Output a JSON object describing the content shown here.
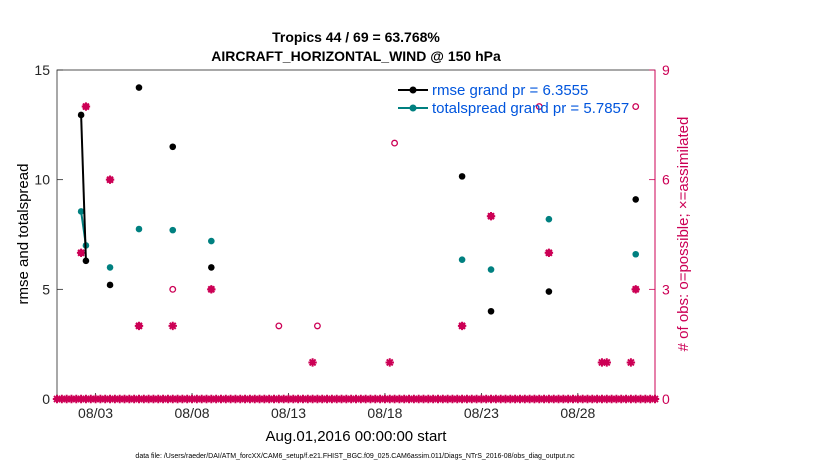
{
  "chart_data": {
    "type": "scatter",
    "title_line1": "Tropics 44 / 69 = 63.768%",
    "title_line2": "AIRCRAFT_HORIZONTAL_WIND @ 150 hPa",
    "xlabel": "Aug.01,2016 00:00:00 start",
    "ylabel_left": "rmse and totalspread",
    "ylabel_right": "# of obs: o=possible; ×=assimilated",
    "xlim": [
      0.5,
      31.5
    ],
    "ylim_left": [
      0,
      15
    ],
    "ylim_right": [
      0,
      9
    ],
    "x_ticks": [
      {
        "x": 2.5,
        "label": "08/03"
      },
      {
        "x": 7.5,
        "label": "08/08"
      },
      {
        "x": 12.5,
        "label": "08/13"
      },
      {
        "x": 17.5,
        "label": "08/18"
      },
      {
        "x": 22.5,
        "label": "08/23"
      },
      {
        "x": 27.5,
        "label": "08/28"
      }
    ],
    "left_ticks": [
      "0",
      "5",
      "10",
      "15"
    ],
    "right_ticks": [
      "0",
      "3",
      "6",
      "9"
    ],
    "legend_position": "top-right",
    "colors": {
      "rmse": "#000000",
      "spread": "#008080",
      "obs": "#cc0055"
    },
    "series": [
      {
        "name": "rmse",
        "legend": "rmse grand pr = 6.3555",
        "points": [
          [
            1.75,
            12.95
          ],
          [
            2.0,
            6.3
          ],
          [
            3.25,
            5.2
          ],
          [
            4.75,
            14.2
          ],
          [
            6.5,
            11.5
          ],
          [
            8.5,
            6.0
          ],
          [
            21.5,
            10.15
          ],
          [
            23.0,
            4.0
          ],
          [
            26.0,
            4.9
          ],
          [
            30.5,
            9.1
          ]
        ],
        "line": [
          [
            1.75,
            12.95
          ],
          [
            2.0,
            6.3
          ]
        ]
      },
      {
        "name": "totalspread",
        "legend": "totalspread grand pr = 5.7857",
        "points": [
          [
            1.75,
            8.55
          ],
          [
            2.0,
            7.0
          ],
          [
            3.25,
            6.0
          ],
          [
            4.75,
            7.75
          ],
          [
            6.5,
            7.7
          ],
          [
            8.5,
            7.2
          ],
          [
            21.5,
            6.35
          ],
          [
            23.0,
            5.9
          ],
          [
            26.0,
            8.2
          ],
          [
            30.5,
            6.6
          ]
        ],
        "line": [
          [
            1.75,
            8.55
          ],
          [
            2.0,
            7.0
          ]
        ]
      },
      {
        "name": "obs_possible",
        "points": [
          [
            1.75,
            4
          ],
          [
            2.0,
            8
          ],
          [
            3.25,
            6
          ],
          [
            4.75,
            2
          ],
          [
            6.5,
            3
          ],
          [
            8.5,
            3
          ],
          [
            12.0,
            2
          ],
          [
            14.0,
            2
          ],
          [
            18.0,
            7
          ],
          [
            21.5,
            2
          ],
          [
            23.0,
            5
          ],
          [
            26.0,
            4
          ],
          [
            25.5,
            8
          ],
          [
            30.5,
            8
          ],
          [
            30.5,
            3
          ]
        ]
      },
      {
        "name": "obs_assimilated",
        "points": [
          [
            1.75,
            4
          ],
          [
            2.0,
            8
          ],
          [
            3.25,
            6
          ],
          [
            4.75,
            2
          ],
          [
            6.5,
            2
          ],
          [
            8.5,
            3
          ],
          [
            13.75,
            1
          ],
          [
            17.75,
            1
          ],
          [
            21.5,
            2
          ],
          [
            23.0,
            5
          ],
          [
            26.0,
            4
          ],
          [
            28.75,
            1
          ],
          [
            29.0,
            1
          ],
          [
            30.25,
            1
          ],
          [
            30.5,
            3
          ]
        ]
      },
      {
        "name": "obs_zero",
        "x_start": 0.5,
        "x_end": 31.5,
        "step": 0.25,
        "y": 0
      }
    ]
  },
  "footer": "data file: /Users/raeder/DAI/ATM_forcXX/CAM6_setup/f.e21.FHIST_BGC.f09_025.CAM6assim.011/Diags_NTrS_2016-08/obs_diag_output.nc"
}
